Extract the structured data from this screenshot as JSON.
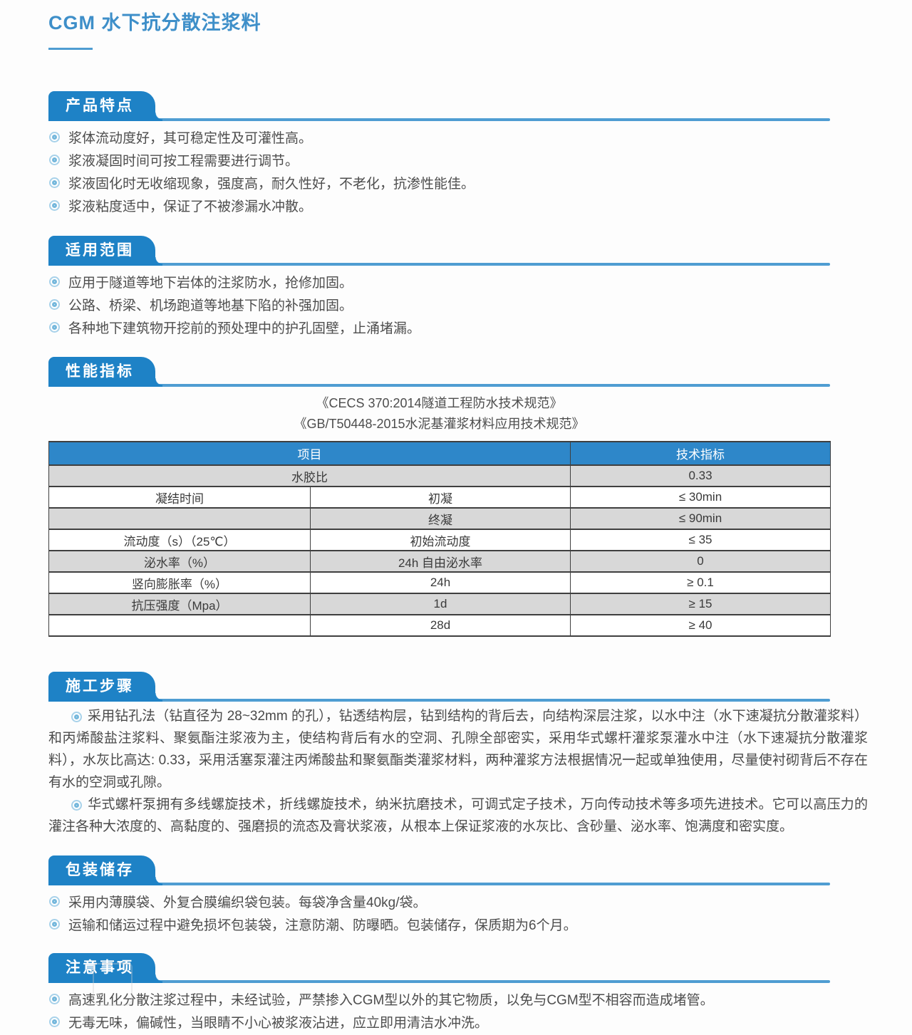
{
  "page": {
    "title": "CGM 水下抗分散注浆料"
  },
  "colors": {
    "title_blue": "#3e8fc9",
    "badge_blue": "#1e82c6",
    "rule_blue": "#4f9dd2",
    "table_header_blue": "#2e87c9",
    "table_row_gray": "#d8d8d8",
    "table_border": "#3f3f3f",
    "body_text": "#4a4a4a",
    "bullet_icon_blue": "#76b8dc"
  },
  "icons": {
    "bullet": "double-circle-icon"
  },
  "sections": {
    "features": {
      "title": "产品特点",
      "bullets": [
        "浆体流动度好，其可稳定性及可灌性高。",
        "浆液凝固时间可按工程需要进行调节。",
        "浆液固化时无收缩现象，强度高，耐久性好，不老化，抗渗性能佳。",
        "浆液粘度适中，保证了不被渗漏水冲散。"
      ]
    },
    "scope": {
      "title": "适用范围",
      "bullets": [
        "应用于隧道等地下岩体的注浆防水，抢修加固。",
        "公路、桥梁、机场跑道等地基下陷的补强加固。",
        "各种地下建筑物开挖前的预处理中的护孔固壁，止涌堵漏。"
      ]
    },
    "performance": {
      "title": "性能指标",
      "standards": [
        "《CECS 370:2014隧道工程防水技术规范》",
        "《GB/T50448-2015水泥基灌浆材料应用技术规范》"
      ]
    },
    "construction": {
      "title": "施工步骤",
      "paragraphs": [
        "采用钻孔法（钻直径为 28~32mm 的孔），钻透结构层，钻到结构的背后去，向结构深层注浆，以水中注（水下速凝抗分散灌浆料）和丙烯酸盐注浆料、聚氨酯注浆液为主，使结构背后有水的空洞、孔隙全部密实，采用华式螺杆灌浆泵灌水中注（水下速凝抗分散灌浆料），水灰比高达: 0.33，采用活塞泵灌注丙烯酸盐和聚氨酯类灌浆材料，两种灌浆方法根据情况一起或单独使用，尽量使衬砌背后不存在有水的空洞或孔隙。",
        "华式螺杆泵拥有多线螺旋技术，折线螺旋技术，纳米抗磨技术，可调式定子技术，万向传动技术等多项先进技术。它可以高压力的灌注各种大浓度的、高黏度的、强磨损的流态及膏状浆液，从根本上保证浆液的水灰比、含砂量、泌水率、饱满度和密实度。"
      ]
    },
    "packaging": {
      "title": "包装储存",
      "bullets": [
        "采用内薄膜袋、外复合膜编织袋包装。每袋净含量40kg/袋。",
        "运输和储运过程中避免损坏包装袋，注意防潮、防曝晒。包装储存，保质期为6个月。"
      ]
    },
    "notes": {
      "title": "注意事项",
      "bullets": [
        "高速乳化分散注浆过程中，未经试验，严禁掺入CGM型以外的其它物质，以免与CGM型不相容而造成堵管。",
        "无毒无味，偏碱性，当眼睛不小心被浆液沾进，应立即用清洁水冲洗。"
      ]
    }
  },
  "table": {
    "header": [
      "项目",
      "技术指标"
    ],
    "rows": [
      [
        "水胶比",
        "",
        "0.33"
      ],
      [
        "凝结时间",
        "初凝",
        "≤ 30min"
      ],
      [
        "",
        "终凝",
        "≤ 90min"
      ],
      [
        "流动度（s）（25℃）",
        "初始流动度",
        "≤ 35"
      ],
      [
        "泌水率（%）",
        "24h 自由泌水率",
        "0"
      ],
      [
        "竖向膨胀率（%）",
        "24h",
        "≥ 0.1"
      ],
      [
        "抗压强度（Mpa）",
        "1d",
        "≥ 15"
      ],
      [
        "",
        "28d",
        "≥ 40"
      ]
    ]
  }
}
